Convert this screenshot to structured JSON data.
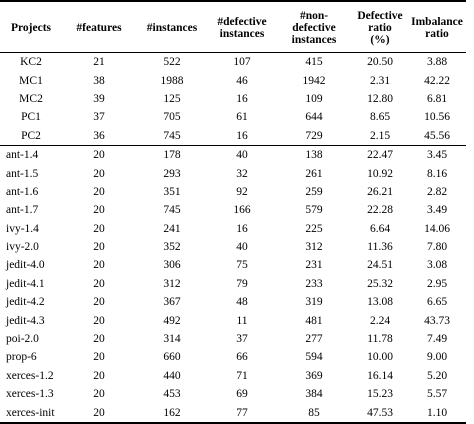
{
  "table": {
    "headers": {
      "projects": "Projects",
      "features": "#features",
      "instances": "#instances",
      "defective_line1": "#defective",
      "defective_line2": "instances",
      "nondefective_line1": "#non-",
      "nondefective_line2": "defective",
      "nondefective_line3": "instances",
      "ratio_line1": "Defective",
      "ratio_line2": "ratio",
      "ratio_line3": "(%)",
      "imbalance_line1": "Imbalance",
      "imbalance_line2": "ratio"
    },
    "group_a": [
      {
        "project": "KC2",
        "features": "21",
        "instances": "522",
        "defective": "107",
        "nondefective": "415",
        "ratio": "20.50",
        "imbalance": "3.88"
      },
      {
        "project": "MC1",
        "features": "38",
        "instances": "1988",
        "defective": "46",
        "nondefective": "1942",
        "ratio": "2.31",
        "imbalance": "42.22"
      },
      {
        "project": "MC2",
        "features": "39",
        "instances": "125",
        "defective": "16",
        "nondefective": "109",
        "ratio": "12.80",
        "imbalance": "6.81"
      },
      {
        "project": "PC1",
        "features": "37",
        "instances": "705",
        "defective": "61",
        "nondefective": "644",
        "ratio": "8.65",
        "imbalance": "10.56"
      },
      {
        "project": "PC2",
        "features": "36",
        "instances": "745",
        "defective": "16",
        "nondefective": "729",
        "ratio": "2.15",
        "imbalance": "45.56"
      }
    ],
    "group_b": [
      {
        "project": "ant-1.4",
        "features": "20",
        "instances": "178",
        "defective": "40",
        "nondefective": "138",
        "ratio": "22.47",
        "imbalance": "3.45"
      },
      {
        "project": "ant-1.5",
        "features": "20",
        "instances": "293",
        "defective": "32",
        "nondefective": "261",
        "ratio": "10.92",
        "imbalance": "8.16"
      },
      {
        "project": "ant-1.6",
        "features": "20",
        "instances": "351",
        "defective": "92",
        "nondefective": "259",
        "ratio": "26.21",
        "imbalance": "2.82"
      },
      {
        "project": "ant-1.7",
        "features": "20",
        "instances": "745",
        "defective": "166",
        "nondefective": "579",
        "ratio": "22.28",
        "imbalance": "3.49"
      },
      {
        "project": "ivy-1.4",
        "features": "20",
        "instances": "241",
        "defective": "16",
        "nondefective": "225",
        "ratio": "6.64",
        "imbalance": "14.06"
      },
      {
        "project": "ivy-2.0",
        "features": "20",
        "instances": "352",
        "defective": "40",
        "nondefective": "312",
        "ratio": "11.36",
        "imbalance": "7.80"
      },
      {
        "project": "jedit-4.0",
        "features": "20",
        "instances": "306",
        "defective": "75",
        "nondefective": "231",
        "ratio": "24.51",
        "imbalance": "3.08"
      },
      {
        "project": "jedit-4.1",
        "features": "20",
        "instances": "312",
        "defective": "79",
        "nondefective": "233",
        "ratio": "25.32",
        "imbalance": "2.95"
      },
      {
        "project": "jedit-4.2",
        "features": "20",
        "instances": "367",
        "defective": "48",
        "nondefective": "319",
        "ratio": "13.08",
        "imbalance": "6.65"
      },
      {
        "project": "jedit-4.3",
        "features": "20",
        "instances": "492",
        "defective": "11",
        "nondefective": "481",
        "ratio": "2.24",
        "imbalance": "43.73"
      },
      {
        "project": "poi-2.0",
        "features": "20",
        "instances": "314",
        "defective": "37",
        "nondefective": "277",
        "ratio": "11.78",
        "imbalance": "7.49"
      },
      {
        "project": "prop-6",
        "features": "20",
        "instances": "660",
        "defective": "66",
        "nondefective": "594",
        "ratio": "10.00",
        "imbalance": "9.00"
      },
      {
        "project": "xerces-1.2",
        "features": "20",
        "instances": "440",
        "defective": "71",
        "nondefective": "369",
        "ratio": "16.14",
        "imbalance": "5.20"
      },
      {
        "project": "xerces-1.3",
        "features": "20",
        "instances": "453",
        "defective": "69",
        "nondefective": "384",
        "ratio": "15.23",
        "imbalance": "5.57"
      },
      {
        "project": "xerces-init",
        "features": "20",
        "instances": "162",
        "defective": "77",
        "nondefective": "85",
        "ratio": "47.53",
        "imbalance": "1.10"
      }
    ]
  }
}
